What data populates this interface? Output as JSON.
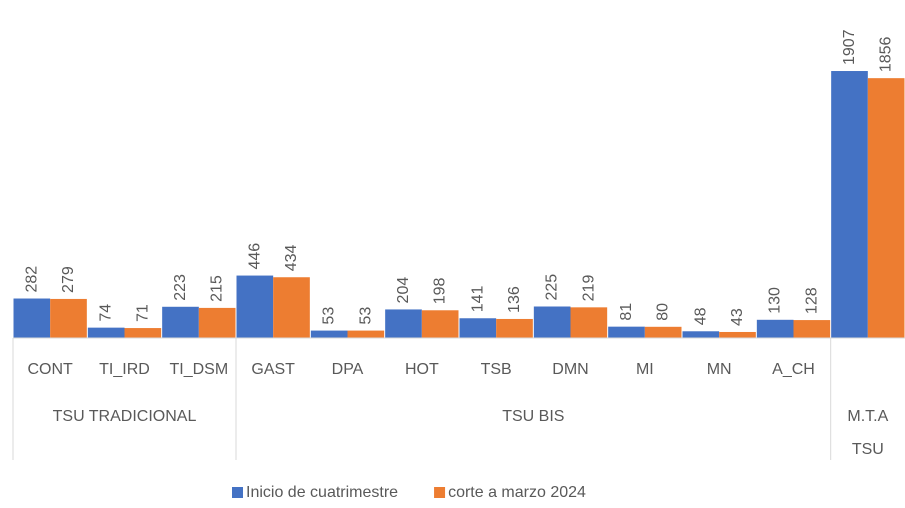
{
  "chart_data": {
    "type": "bar",
    "categories": [
      "CONT",
      "TI_IRD",
      "TI_DSM",
      "GAST",
      "DPA",
      "HOT",
      "TSB",
      "DMN",
      "MI",
      "MN",
      "A_CH",
      null
    ],
    "groups": [
      {
        "name": "TSU TRADICIONAL",
        "count": 3
      },
      {
        "name": "TSU BIS",
        "count": 8
      },
      {
        "name": "M.T.A TSU",
        "count": 1
      }
    ],
    "series": [
      {
        "name": "Inicio de cuatrimestre",
        "color": "#4472c4",
        "values": [
          282,
          74,
          223,
          446,
          53,
          204,
          141,
          225,
          81,
          48,
          130,
          1907
        ]
      },
      {
        "name": "corte a marzo 2024",
        "color": "#ed7d31",
        "values": [
          279,
          71,
          215,
          434,
          53,
          198,
          136,
          219,
          80,
          43,
          128,
          1856
        ]
      }
    ],
    "ylim": [
      0,
      2000
    ],
    "legend": "bottom"
  }
}
